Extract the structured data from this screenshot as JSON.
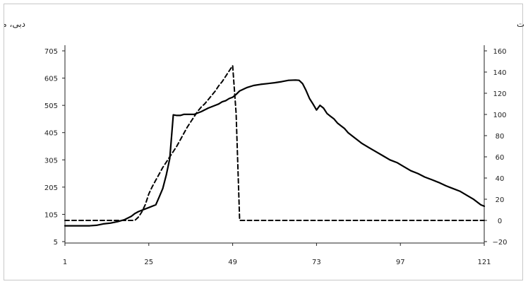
{
  "chart_data": {
    "type": "line",
    "left_axis_title": "دبی، مترمکعب در ثانیه",
    "right_axis_title": "بارش برحسب میلی متر در ساعت",
    "x_ticks": [
      "1",
      "25",
      "49",
      "73",
      "97",
      "121"
    ],
    "left_ticks": [
      "5",
      "105",
      "205",
      "305",
      "405",
      "505",
      "605",
      "705"
    ],
    "right_ticks": [
      "−20",
      "0",
      "20",
      "40",
      "60",
      "80",
      "100",
      "120",
      "140",
      "160"
    ],
    "xlim": [
      1,
      121
    ],
    "left_ylim": [
      5,
      705
    ],
    "right_ylim": [
      -20,
      160
    ],
    "grid": false,
    "series": [
      {
        "style": "solid",
        "axis": "left",
        "x": [
          1,
          8,
          10,
          12,
          14,
          16,
          18,
          20,
          21,
          22,
          23,
          24,
          25,
          27,
          28,
          29,
          30,
          31,
          32,
          33,
          34,
          35,
          36,
          38,
          40,
          42,
          44,
          45,
          46,
          47,
          48,
          49,
          50,
          51,
          53,
          55,
          57,
          59,
          61,
          63,
          65,
          67,
          68,
          69,
          70,
          71,
          72,
          73,
          74,
          75,
          76,
          77,
          78,
          79,
          80,
          81,
          82,
          84,
          86,
          88,
          90,
          92,
          94,
          96,
          98,
          100,
          102,
          104,
          106,
          108,
          110,
          112,
          114,
          116,
          118,
          120,
          121
        ],
        "y": [
          63,
          63,
          65,
          70,
          73,
          78,
          85,
          98,
          108,
          115,
          120,
          125,
          130,
          140,
          170,
          200,
          250,
          310,
          470,
          468,
          468,
          472,
          472,
          472,
          482,
          495,
          505,
          510,
          518,
          522,
          530,
          535,
          545,
          558,
          570,
          578,
          582,
          585,
          588,
          592,
          597,
          598,
          597,
          585,
          560,
          530,
          510,
          488,
          505,
          495,
          475,
          465,
          455,
          440,
          430,
          420,
          405,
          385,
          365,
          350,
          335,
          320,
          305,
          295,
          280,
          265,
          255,
          242,
          232,
          222,
          210,
          200,
          190,
          175,
          160,
          140,
          135
        ]
      },
      {
        "style": "dashed",
        "axis": "right",
        "x": [
          1,
          20,
          21,
          22,
          23,
          24,
          25,
          26,
          27,
          28,
          29,
          30,
          31,
          32,
          33,
          34,
          35,
          36,
          37,
          38,
          39,
          40,
          41,
          42,
          43,
          44,
          45,
          46,
          47,
          48,
          49,
          50,
          51,
          121
        ],
        "y": [
          0,
          0,
          0,
          3,
          8,
          15,
          25,
          32,
          38,
          44,
          50,
          55,
          60,
          65,
          70,
          76,
          82,
          88,
          93,
          98,
          103,
          107,
          110,
          114,
          118,
          122,
          127,
          131,
          136,
          141,
          146,
          101,
          0,
          0
        ]
      }
    ]
  }
}
